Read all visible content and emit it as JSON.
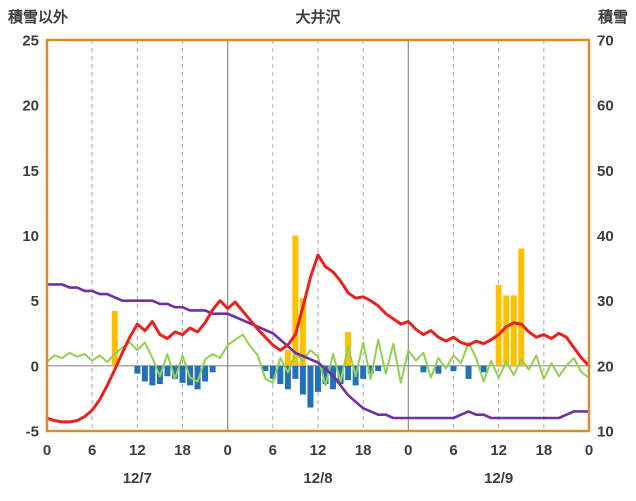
{
  "header": {
    "left_label": "積雪以外",
    "title": "大井沢",
    "right_label": "積雪"
  },
  "colors": {
    "frame": "#d98e2b",
    "grid_dashed": "#aaaaaa",
    "day_line": "#8c8c8c",
    "zero_line": "#8c8c8c",
    "text": "#3d3d3d",
    "background": "#ffffff"
  },
  "chart_data": {
    "type": "combo",
    "title": "大井沢",
    "left_axis_label": "積雪以外",
    "right_axis_label": "積雪",
    "x_hours_range": [
      0,
      72
    ],
    "x_tick_interval": 6,
    "x_tick_labels": [
      "0",
      "6",
      "12",
      "18",
      "0",
      "6",
      "12",
      "18",
      "0",
      "6",
      "12",
      "18",
      "0"
    ],
    "day_labels": [
      "12/7",
      "12/8",
      "12/9"
    ],
    "day_label_centers_hour": [
      12,
      36,
      60
    ],
    "left_axis": {
      "min": -5,
      "max": 25,
      "ticks": [
        25,
        20,
        15,
        10,
        5,
        0,
        -5
      ]
    },
    "right_axis": {
      "min": 10,
      "max": 70,
      "ticks": [
        70,
        60,
        50,
        40,
        30,
        20,
        10
      ]
    },
    "grid": {
      "vertical_dashed_every_6h": true,
      "solid_day_boundaries": true,
      "horizontal_zero_line_only": true
    },
    "series": [
      {
        "name": "orange-bars",
        "type": "bar",
        "axis": "left",
        "color": "#ffc000",
        "values_by_hour": {
          "9": 4.2,
          "32": 1.2,
          "33": 10.0,
          "34": 5.2,
          "40": 2.6,
          "60": 6.2,
          "61": 5.4,
          "62": 5.4,
          "63": 9.0
        }
      },
      {
        "name": "blue-bars",
        "type": "bar",
        "axis": "left",
        "color": "#2272b8",
        "values_by_hour": {
          "12": -0.6,
          "13": -1.2,
          "14": -1.5,
          "15": -1.4,
          "16": -0.8,
          "17": -1.0,
          "18": -1.3,
          "19": -1.5,
          "20": -1.8,
          "21": -1.2,
          "22": -0.5,
          "29": -0.4,
          "30": -1.0,
          "31": -1.4,
          "32": -1.8,
          "33": -1.0,
          "34": -2.2,
          "35": -3.2,
          "36": -2.0,
          "37": -1.4,
          "38": -1.8,
          "39": -1.4,
          "40": -1.1,
          "41": -1.5,
          "42": -1.0,
          "43": -0.6,
          "44": -0.4,
          "50": -0.5,
          "52": -0.6,
          "54": -0.4,
          "56": -1.0,
          "58": -0.5
        }
      },
      {
        "name": "green-line",
        "type": "line",
        "axis": "left",
        "color": "#92d050",
        "width": 2,
        "values": [
          0.3,
          0.8,
          0.6,
          1.0,
          0.7,
          0.9,
          0.4,
          0.8,
          0.3,
          0.9,
          1.4,
          1.8,
          1.2,
          1.8,
          0.6,
          -0.8,
          0.9,
          -1.0,
          0.8,
          -0.9,
          -1.2,
          0.5,
          0.9,
          0.6,
          1.6,
          2.0,
          2.4,
          1.5,
          0.8,
          -1.0,
          -1.3,
          0.6,
          -0.5,
          1.0,
          0.4,
          1.2,
          0.7,
          -1.5,
          0.9,
          -1.2,
          1.5,
          -0.8,
          1.8,
          -1.0,
          2.0,
          -0.6,
          1.7,
          -1.3,
          1.2,
          0.4,
          1.0,
          -0.9,
          0.6,
          -0.2,
          0.8,
          0.2,
          1.8,
          0.6,
          -1.2,
          0.4,
          -0.9,
          0.3,
          -0.7,
          0.5,
          -0.3,
          0.8,
          -1.0,
          0.2,
          -0.8,
          0.0,
          0.6,
          -0.5,
          -0.9
        ]
      },
      {
        "name": "purple-line",
        "type": "line",
        "axis": "right",
        "color": "#7030a0",
        "width": 2.6,
        "values": [
          32.5,
          32.5,
          32.5,
          32.0,
          32.0,
          31.5,
          31.5,
          31.0,
          31.0,
          30.5,
          30.0,
          30.0,
          30.0,
          30.0,
          30.0,
          29.5,
          29.5,
          29.0,
          29.0,
          28.5,
          28.5,
          28.5,
          28.0,
          28.0,
          28.0,
          27.5,
          27.0,
          26.5,
          26.0,
          25.5,
          25.0,
          24.0,
          23.0,
          22.0,
          21.5,
          21.0,
          20.5,
          19.5,
          18.5,
          17.0,
          15.5,
          14.5,
          13.5,
          13.0,
          12.5,
          12.5,
          12.0,
          12.0,
          12.0,
          12.0,
          12.0,
          12.0,
          12.0,
          12.0,
          12.0,
          12.5,
          13.0,
          12.5,
          12.5,
          12.0,
          12.0,
          12.0,
          12.0,
          12.0,
          12.0,
          12.0,
          12.0,
          12.0,
          12.0,
          12.5,
          13.0,
          13.0,
          13.0
        ]
      },
      {
        "name": "red-line",
        "type": "line",
        "axis": "left",
        "color": "#e8231f",
        "width": 3,
        "values": [
          -4.0,
          -4.2,
          -4.3,
          -4.3,
          -4.2,
          -3.9,
          -3.4,
          -2.6,
          -1.5,
          -0.3,
          1.0,
          2.2,
          3.2,
          2.7,
          3.4,
          2.4,
          2.1,
          2.6,
          2.4,
          2.9,
          2.6,
          3.3,
          4.3,
          5.0,
          4.4,
          4.9,
          4.2,
          3.5,
          2.8,
          2.2,
          1.6,
          1.2,
          1.6,
          2.4,
          4.5,
          6.8,
          8.5,
          7.6,
          7.2,
          6.5,
          5.6,
          5.2,
          5.3,
          5.0,
          4.6,
          4.0,
          3.6,
          3.2,
          3.4,
          2.8,
          2.4,
          2.7,
          2.2,
          1.9,
          2.2,
          1.8,
          1.6,
          1.9,
          1.7,
          2.0,
          2.4,
          3.0,
          3.3,
          3.2,
          2.6,
          2.2,
          2.4,
          2.1,
          2.5,
          2.2,
          1.4,
          0.6,
          0.0
        ]
      }
    ]
  }
}
